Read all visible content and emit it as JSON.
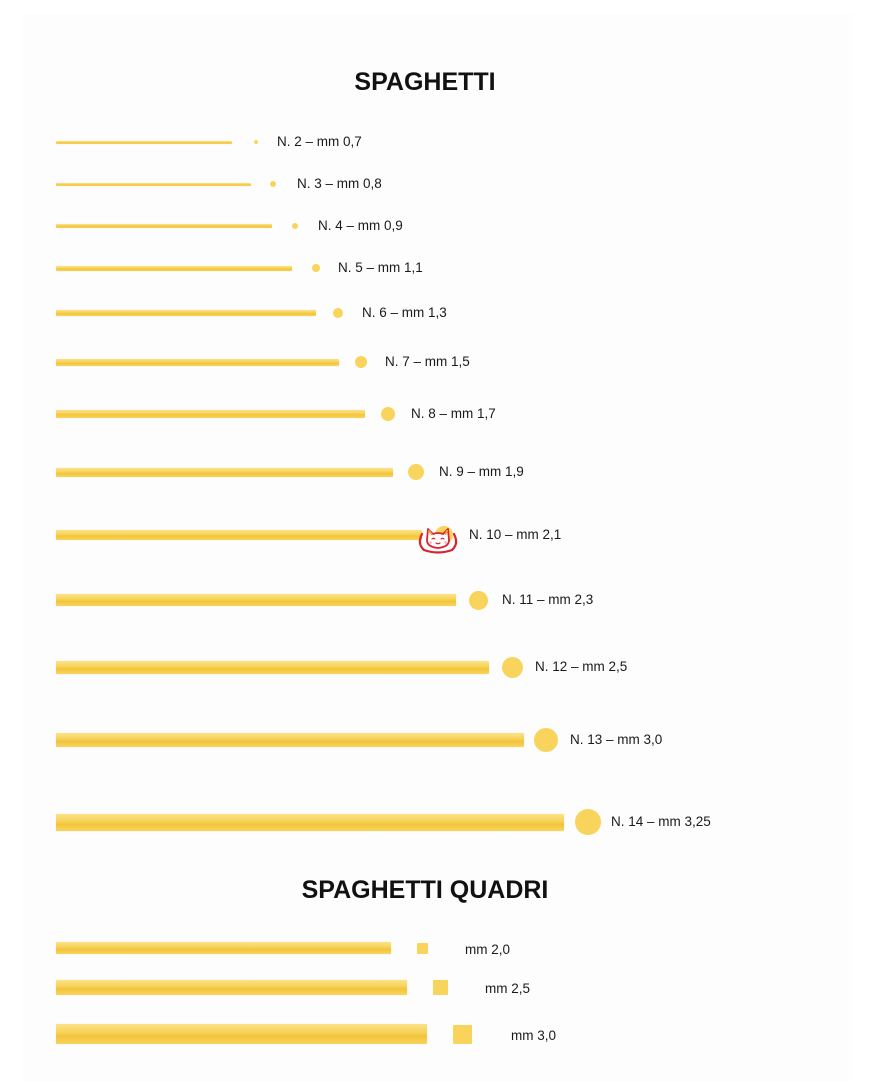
{
  "spaghetti": {
    "title": "SPAGHETTI",
    "items": [
      {
        "label": "N. 2 – mm 0,7"
      },
      {
        "label": "N. 3 – mm 0,8"
      },
      {
        "label": "N. 4 – mm 0,9"
      },
      {
        "label": "N. 5 – mm 1,1"
      },
      {
        "label": "N. 6 – mm 1,3"
      },
      {
        "label": "N. 7 – mm 1,5"
      },
      {
        "label": "N. 8 – mm 1,7"
      },
      {
        "label": "N. 9 – mm 1,9"
      },
      {
        "label": "N. 10 – mm 2,1"
      },
      {
        "label": "N. 11 – mm 2,3"
      },
      {
        "label": "N. 12 – mm 2,5"
      },
      {
        "label": "N. 13 – mm 3,0"
      },
      {
        "label": "N. 14 – mm 3,25"
      }
    ]
  },
  "spaghetti_quadri": {
    "title": "SPAGHETTI QUADRI",
    "items": [
      {
        "label": "mm 2,0"
      },
      {
        "label": "mm 2,5"
      },
      {
        "label": "mm 3,0"
      }
    ]
  },
  "colors": {
    "pasta": "#f8d45c",
    "pasta_light": "#fbe18a",
    "pasta_dark": "#f2c43c",
    "text": "#1a1a1a",
    "mascot_red": "#d9232f"
  },
  "icons": {
    "mascot": "cat-mascot-icon"
  }
}
